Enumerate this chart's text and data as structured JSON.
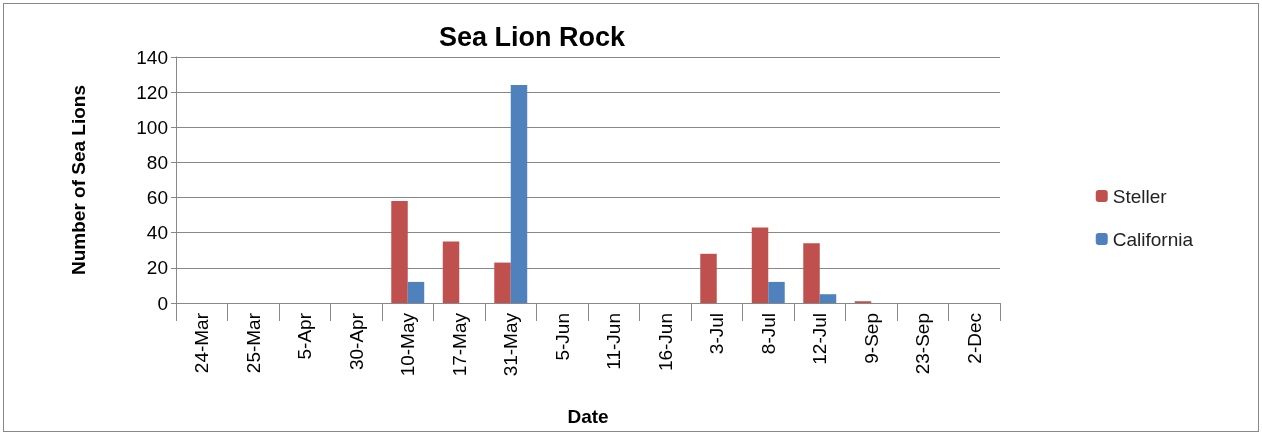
{
  "chart_data": {
    "type": "bar",
    "title": "Sea Lion Rock",
    "xlabel": "Date",
    "ylabel": "Number of Sea Lions",
    "categories": [
      "24-Mar",
      "25-Mar",
      "5-Apr",
      "30-Apr",
      "10-May",
      "17-May",
      "31-May",
      "5-Jun",
      "11-Jun",
      "16-Jun",
      "3-Jul",
      "8-Jul",
      "12-Jul",
      "9-Sep",
      "23-Sep",
      "2-Dec"
    ],
    "series": [
      {
        "name": "Steller",
        "color": "#c0504d",
        "values": [
          0,
          0,
          0,
          0,
          58,
          35,
          23,
          0,
          0,
          0,
          28,
          43,
          34,
          1,
          0,
          0
        ]
      },
      {
        "name": "California",
        "color": "#4f81bd",
        "values": [
          0,
          0,
          0,
          0,
          12,
          0,
          124,
          0,
          0,
          0,
          0,
          12,
          5,
          0,
          0,
          0
        ]
      }
    ],
    "ylim": [
      0,
      140
    ],
    "yticks": [
      0,
      20,
      40,
      60,
      80,
      100,
      120,
      140
    ],
    "grid": "y",
    "legend": "right"
  }
}
